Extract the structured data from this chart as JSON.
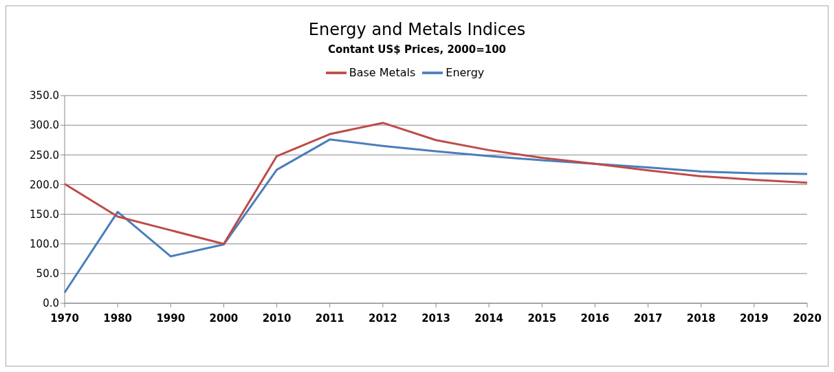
{
  "chart_data": {
    "type": "line",
    "title": "Energy and Metals Indices",
    "subtitle": "Contant US$ Prices, 2000=100",
    "categories": [
      "1970",
      "1980",
      "1990",
      "2000",
      "2010",
      "2011",
      "2012",
      "2013",
      "2014",
      "2015",
      "2016",
      "2017",
      "2018",
      "2019",
      "2020"
    ],
    "series": [
      {
        "name": "Energy",
        "color": "#4a7ebb",
        "values": [
          18,
          154,
          79,
          99,
          225,
          276,
          265,
          256,
          248,
          241,
          235,
          229,
          222,
          219,
          218
        ]
      },
      {
        "name": "Base Metals",
        "color": "#be4b48",
        "values": [
          201,
          146,
          123,
          100,
          248,
          285,
          304,
          275,
          258,
          245,
          235,
          224,
          214,
          208,
          203
        ]
      }
    ],
    "ylim": [
      0,
      350
    ],
    "yticks": [
      {
        "value": 0,
        "label": "0.0"
      },
      {
        "value": 50,
        "label": "50.0"
      },
      {
        "value": 100,
        "label": "100.0"
      },
      {
        "value": 150,
        "label": "150.0"
      },
      {
        "value": 200,
        "label": "200.0"
      },
      {
        "value": 250,
        "label": "250.0"
      },
      {
        "value": 300,
        "label": "300.0"
      },
      {
        "value": 350,
        "label": "350.0"
      }
    ],
    "grid": "y",
    "legend": "top",
    "marker": "none",
    "line_style": "solid"
  }
}
